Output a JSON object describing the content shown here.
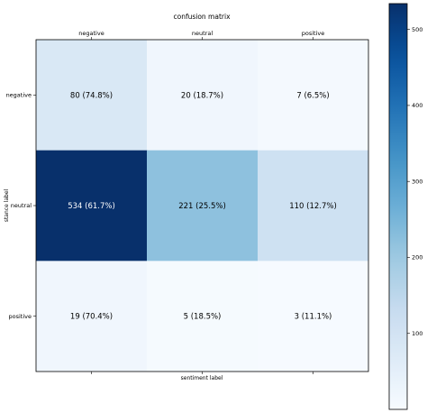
{
  "chart_data": {
    "type": "heatmap",
    "title": "confusion matrix",
    "xlabel": "sentiment label",
    "ylabel": "stance label",
    "x_categories": [
      "negative",
      "neutral",
      "positive"
    ],
    "y_categories": [
      "negative",
      "neutral",
      "positive"
    ],
    "values": [
      [
        80,
        20,
        7
      ],
      [
        534,
        221,
        110
      ],
      [
        19,
        5,
        3
      ]
    ],
    "cell_labels": [
      [
        "80 (74.8%)",
        "20 (18.7%)",
        "7 (6.5%)"
      ],
      [
        "534 (61.7%)",
        "221 (25.5%)",
        "110 (12.7%)"
      ],
      [
        "19 (70.4%)",
        "5 (18.5%)",
        "3 (11.1%)"
      ]
    ],
    "colormap": "Blues",
    "color_range": [
      0,
      534
    ],
    "colorbar_ticks": [
      100,
      200,
      300,
      400,
      500
    ],
    "colorbar_tick_labels": [
      "100",
      "200",
      "300",
      "400",
      "500"
    ],
    "x_tick_position": "top",
    "text_color_light": "#ffffff",
    "text_color_dark": "#000000"
  }
}
